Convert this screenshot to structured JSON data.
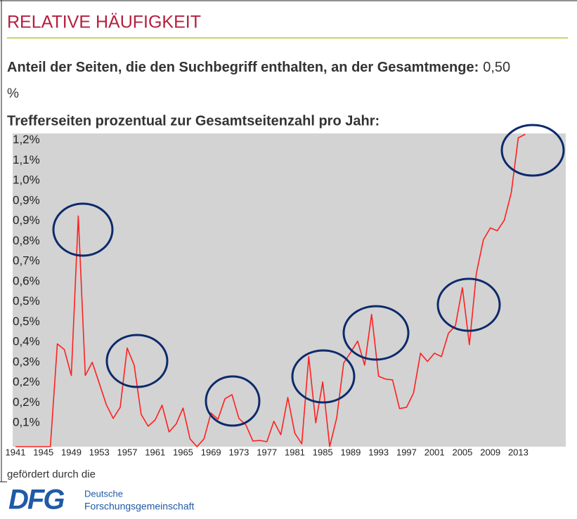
{
  "header": {
    "title": "RELATIVE HÄUFIGKEIT"
  },
  "summary": {
    "label": "Anteil der Seiten, die den Suchbegriff enthalten, an der Gesamtmenge:",
    "value": "0,50",
    "unit": "%"
  },
  "chart_data": {
    "type": "line",
    "title": "Trefferseiten prozentual zur Gesamtseitenzahl pro Jahr:",
    "x": [
      1941,
      1942,
      1943,
      1944,
      1945,
      1946,
      1947,
      1948,
      1949,
      1950,
      1951,
      1952,
      1953,
      1954,
      1955,
      1956,
      1957,
      1958,
      1959,
      1960,
      1961,
      1962,
      1963,
      1964,
      1965,
      1966,
      1967,
      1968,
      1969,
      1970,
      1971,
      1972,
      1973,
      1974,
      1975,
      1976,
      1977,
      1978,
      1979,
      1980,
      1981,
      1982,
      1983,
      1984,
      1985,
      1986,
      1987,
      1988,
      1989,
      1990,
      1991,
      1992,
      1993,
      1994,
      1995,
      1996,
      1997,
      1998,
      1999,
      2000,
      2001,
      2002,
      2003,
      2004,
      2005,
      2006,
      2007,
      2008,
      2009,
      2010,
      2011,
      2012,
      2013,
      2014
    ],
    "series": [
      {
        "color": "#ff2020",
        "values": [
          0,
          0,
          0,
          0,
          0,
          0,
          0.397,
          0.375,
          0.275,
          0.891,
          0.275,
          0.326,
          0.245,
          0.163,
          0.109,
          0.152,
          0.381,
          0.315,
          0.125,
          0.079,
          0.103,
          0.16,
          0.057,
          0.087,
          0.149,
          0.03,
          0,
          0.03,
          0.13,
          0.106,
          0.185,
          0.201,
          0.109,
          0.084,
          0.022,
          0.024,
          0.019,
          0.098,
          0.046,
          0.19,
          0.052,
          0.011,
          0.348,
          0.092,
          0.25,
          0,
          0.111,
          0.323,
          0.364,
          0.408,
          0.315,
          0.511,
          0.272,
          0.261,
          0.258,
          0.147,
          0.152,
          0.207,
          0.361,
          0.329,
          0.361,
          0.348,
          0.438,
          0.467,
          0.614,
          0.394,
          0.669,
          0.799,
          0.845,
          0.834,
          0.875,
          0.981,
          1.193,
          1.207
        ]
      }
    ],
    "xlim": [
      1940.6,
      2019.8
    ],
    "xticks": [
      1941,
      1945,
      1949,
      1953,
      1957,
      1961,
      1965,
      1969,
      1973,
      1977,
      1981,
      1985,
      1989,
      1993,
      1997,
      2001,
      2005,
      2009,
      2013
    ],
    "ylim": [
      0,
      1.21
    ],
    "yticks": [
      {
        "value": 0.078,
        "label": "0,1%"
      },
      {
        "value": 0.156,
        "label": "0,2%"
      },
      {
        "value": 0.234,
        "label": "0,2%"
      },
      {
        "value": 0.312,
        "label": "0,3%"
      },
      {
        "value": 0.39,
        "label": "0,4%"
      },
      {
        "value": 0.468,
        "label": "0,5%"
      },
      {
        "value": 0.546,
        "label": "0,5%"
      },
      {
        "value": 0.624,
        "label": "0,6%"
      },
      {
        "value": 0.702,
        "label": "0,7%"
      },
      {
        "value": 0.78,
        "label": "0,8%"
      },
      {
        "value": 0.858,
        "label": "0,9%"
      },
      {
        "value": 0.936,
        "label": "0,9%"
      },
      {
        "value": 1.014,
        "label": "1,0%"
      },
      {
        "value": 1.092,
        "label": "1,1%"
      },
      {
        "value": 1.17,
        "label": "1,2%"
      }
    ],
    "grid": false
  },
  "footer": {
    "funded_by": "gefördert durch die",
    "logo": "DFG",
    "org_line1": "Deutsche",
    "org_line2": "Forschungsgemeinschaft"
  }
}
